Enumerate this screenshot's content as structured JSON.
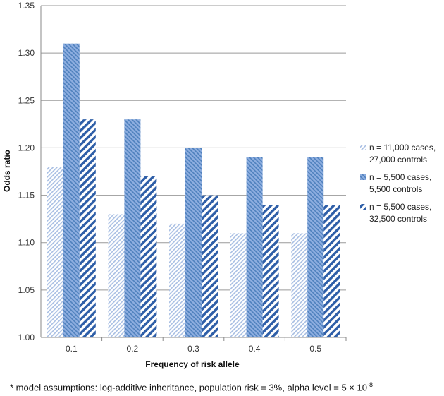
{
  "chart_data": {
    "type": "bar",
    "xlabel": "Frequency of risk allele",
    "ylabel": "Odds ratio",
    "categories": [
      "0.1",
      "0.2",
      "0.3",
      "0.4",
      "0.5"
    ],
    "ylim": [
      1.0,
      1.35
    ],
    "yticks": [
      "1.00",
      "1.05",
      "1.10",
      "1.15",
      "1.20",
      "1.25",
      "1.30",
      "1.35"
    ],
    "grid": true,
    "legend_position": "right",
    "series": [
      {
        "name": "n = 11,000 cases, 27,000 controls",
        "legend_lines": [
          "n = 11,000 cases,",
          "27,000 controls"
        ],
        "values": [
          1.18,
          1.13,
          1.12,
          1.11,
          1.11
        ],
        "color": "#a9bfe3",
        "pattern": "light-diagonal"
      },
      {
        "name": "n = 5,500 cases, 5,500 controls",
        "legend_lines": [
          "n = 5,500 cases,",
          "5,500 controls"
        ],
        "values": [
          1.31,
          1.23,
          1.2,
          1.19,
          1.19
        ],
        "color": "#4f81bd",
        "pattern": "horizontal-lines"
      },
      {
        "name": "n = 5,500 cases, 32,500 controls",
        "legend_lines": [
          "n = 5,500 cases,",
          "32,500 controls"
        ],
        "values": [
          1.23,
          1.17,
          1.15,
          1.14,
          1.14
        ],
        "color": "#2f5fa8",
        "pattern": "wide-diagonal"
      }
    ]
  },
  "footnote": {
    "prefix": "* model assumptions: log-additive inheritance, population risk = 3%, alpha level = 5 × 10",
    "exponent": "-8"
  }
}
